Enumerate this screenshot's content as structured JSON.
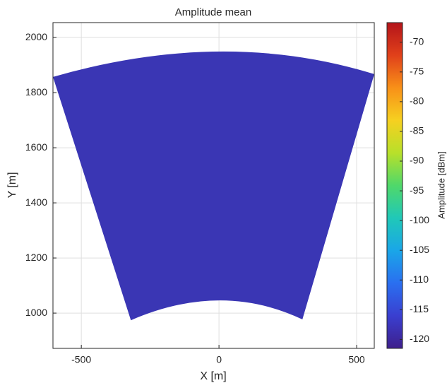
{
  "chart_data": {
    "type": "heatmap",
    "title": "Amplitude mean",
    "x_label": "X [m]",
    "y_label": "Y [m]",
    "xlim": [
      -603,
      564
    ],
    "ylim": [
      872,
      2054
    ],
    "xticks": [
      -500,
      0,
      500
    ],
    "yticks": [
      1000,
      1200,
      1400,
      1600,
      1800,
      2000
    ],
    "grid": true,
    "fan": {
      "x": [
        -603,
        0,
        564,
        303,
        0,
        -320
      ],
      "y": [
        1857,
        1949,
        1867,
        977,
        1046,
        974
      ]
    },
    "fan_color": "#3a36b4",
    "colorbar": {
      "label": "Amplitude [dBm]",
      "clim": [
        -121.5,
        -66.7
      ],
      "ticks": [
        -120,
        -115,
        -110,
        -105,
        -100,
        -95,
        -90,
        -85,
        -80,
        -75,
        -70
      ],
      "colormap": [
        "#3e1f8c",
        "#3a3fd0",
        "#2a6ff0",
        "#1aa6e8",
        "#20c8b8",
        "#4fd86a",
        "#b8e02a",
        "#f6d020",
        "#f89018",
        "#e0401a",
        "#b4141a"
      ]
    }
  }
}
